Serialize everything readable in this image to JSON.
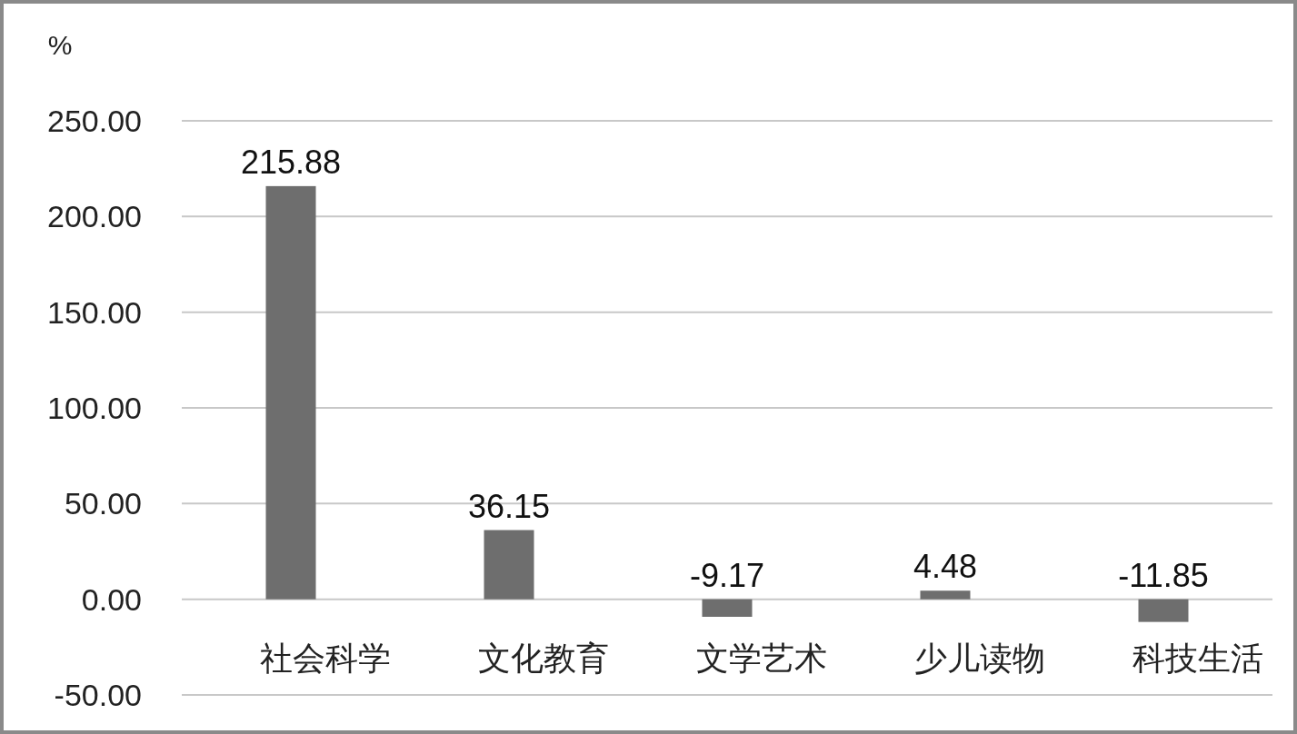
{
  "chart_data": {
    "type": "bar",
    "ylabel": "%",
    "categories": [
      "社会科学",
      "文化教育",
      "文学艺术",
      "少儿读物",
      "科技生活"
    ],
    "values": [
      215.88,
      36.15,
      -9.17,
      4.48,
      -11.85
    ],
    "color": "#6e6e6e",
    "ylim": [
      -50,
      250
    ],
    "yticks": [
      {
        "value": -50,
        "label": "-50.00"
      },
      {
        "value": 0,
        "label": "0.00"
      },
      {
        "value": 50,
        "label": "50.00"
      },
      {
        "value": 100,
        "label": "100.00"
      },
      {
        "value": 150,
        "label": "150.00"
      },
      {
        "value": 200,
        "label": "200.00"
      },
      {
        "value": 250,
        "label": "250.00"
      }
    ],
    "grid": "y",
    "data_labels": true
  }
}
